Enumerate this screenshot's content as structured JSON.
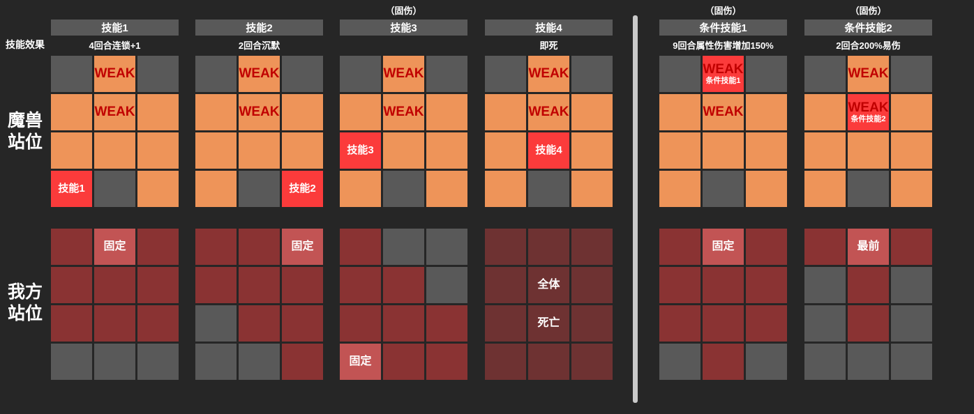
{
  "labels": {
    "skill_effect": "技能效果",
    "monster_position": "魔兽\n站位",
    "player_position": "我方\n站位"
  },
  "colors": {
    "background": "#262626",
    "header_bg": "#595959",
    "dark_cell": "#595959",
    "orange_cell": "#EE9459",
    "red_cell": "#FB3B3B",
    "player_red_cell": "#8A3333",
    "light_red_cell": "#C25454",
    "gray_cell": "#595959",
    "maroon_cell": "#6E3232",
    "weak_text": "#C00000",
    "white_text": "#FFFFFF",
    "divider": "#C9C9C9"
  },
  "skills": [
    {
      "id": "skill-1",
      "tag": "",
      "name": "技能1",
      "effect": "4回合连锁+1",
      "monster_grid": [
        [
          {
            "c": "d"
          },
          {
            "c": "o",
            "t": "WEAK"
          },
          {
            "c": "d"
          }
        ],
        [
          {
            "c": "o"
          },
          {
            "c": "o",
            "t": "WEAK"
          },
          {
            "c": "o"
          }
        ],
        [
          {
            "c": "o"
          },
          {
            "c": "o"
          },
          {
            "c": "o"
          }
        ],
        [
          {
            "c": "r",
            "t": "技能1"
          },
          {
            "c": "d"
          },
          {
            "c": "o"
          }
        ]
      ],
      "player_grid": [
        [
          {
            "c": "p"
          },
          {
            "c": "f",
            "t": "固定"
          },
          {
            "c": "p"
          }
        ],
        [
          {
            "c": "p"
          },
          {
            "c": "p"
          },
          {
            "c": "p"
          }
        ],
        [
          {
            "c": "p"
          },
          {
            "c": "p"
          },
          {
            "c": "p"
          }
        ],
        [
          {
            "c": "g"
          },
          {
            "c": "g"
          },
          {
            "c": "g"
          }
        ]
      ]
    },
    {
      "id": "skill-2",
      "tag": "",
      "name": "技能2",
      "effect": "2回合沉默",
      "monster_grid": [
        [
          {
            "c": "d"
          },
          {
            "c": "o",
            "t": "WEAK"
          },
          {
            "c": "d"
          }
        ],
        [
          {
            "c": "o"
          },
          {
            "c": "o",
            "t": "WEAK"
          },
          {
            "c": "o"
          }
        ],
        [
          {
            "c": "o"
          },
          {
            "c": "o"
          },
          {
            "c": "o"
          }
        ],
        [
          {
            "c": "o"
          },
          {
            "c": "d"
          },
          {
            "c": "r",
            "t": "技能2"
          }
        ]
      ],
      "player_grid": [
        [
          {
            "c": "p"
          },
          {
            "c": "p"
          },
          {
            "c": "f",
            "t": "固定"
          }
        ],
        [
          {
            "c": "p"
          },
          {
            "c": "p"
          },
          {
            "c": "p"
          }
        ],
        [
          {
            "c": "g"
          },
          {
            "c": "p"
          },
          {
            "c": "p"
          }
        ],
        [
          {
            "c": "g"
          },
          {
            "c": "g"
          },
          {
            "c": "p"
          }
        ]
      ]
    },
    {
      "id": "skill-3",
      "tag": "（固伤）",
      "name": "技能3",
      "effect": "",
      "monster_grid": [
        [
          {
            "c": "d"
          },
          {
            "c": "o",
            "t": "WEAK"
          },
          {
            "c": "d"
          }
        ],
        [
          {
            "c": "o"
          },
          {
            "c": "o",
            "t": "WEAK"
          },
          {
            "c": "o"
          }
        ],
        [
          {
            "c": "r",
            "t": "技能3"
          },
          {
            "c": "o"
          },
          {
            "c": "o"
          }
        ],
        [
          {
            "c": "o"
          },
          {
            "c": "d"
          },
          {
            "c": "o"
          }
        ]
      ],
      "player_grid": [
        [
          {
            "c": "p"
          },
          {
            "c": "g"
          },
          {
            "c": "g"
          }
        ],
        [
          {
            "c": "p"
          },
          {
            "c": "p"
          },
          {
            "c": "g"
          }
        ],
        [
          {
            "c": "p"
          },
          {
            "c": "p"
          },
          {
            "c": "p"
          }
        ],
        [
          {
            "c": "f",
            "t": "固定"
          },
          {
            "c": "p"
          },
          {
            "c": "p"
          }
        ]
      ]
    },
    {
      "id": "skill-4",
      "tag": "",
      "name": "技能4",
      "effect": "即死",
      "monster_grid": [
        [
          {
            "c": "d"
          },
          {
            "c": "o",
            "t": "WEAK"
          },
          {
            "c": "d"
          }
        ],
        [
          {
            "c": "o"
          },
          {
            "c": "o",
            "t": "WEAK"
          },
          {
            "c": "o"
          }
        ],
        [
          {
            "c": "o"
          },
          {
            "c": "r",
            "t": "技能4"
          },
          {
            "c": "o"
          }
        ],
        [
          {
            "c": "o"
          },
          {
            "c": "d"
          },
          {
            "c": "o"
          }
        ]
      ],
      "player_grid": [
        [
          {
            "c": "m"
          },
          {
            "c": "m"
          },
          {
            "c": "m"
          }
        ],
        [
          {
            "c": "m"
          },
          {
            "c": "m",
            "t": "全体"
          },
          {
            "c": "m"
          }
        ],
        [
          {
            "c": "m"
          },
          {
            "c": "m",
            "t": "死亡"
          },
          {
            "c": "m"
          }
        ],
        [
          {
            "c": "m"
          },
          {
            "c": "m"
          },
          {
            "c": "m"
          }
        ]
      ]
    },
    {
      "id": "cond-skill-1",
      "tag": "（固伤）",
      "name": "条件技能1",
      "effect": "9回合属性伤害增加150%",
      "monster_grid": [
        [
          {
            "c": "d"
          },
          {
            "c": "r",
            "t": "WEAK",
            "s": "条件技能1"
          },
          {
            "c": "d"
          }
        ],
        [
          {
            "c": "o"
          },
          {
            "c": "o",
            "t": "WEAK"
          },
          {
            "c": "o"
          }
        ],
        [
          {
            "c": "o"
          },
          {
            "c": "o"
          },
          {
            "c": "o"
          }
        ],
        [
          {
            "c": "o"
          },
          {
            "c": "d"
          },
          {
            "c": "o"
          }
        ]
      ],
      "player_grid": [
        [
          {
            "c": "p"
          },
          {
            "c": "f",
            "t": "固定"
          },
          {
            "c": "p"
          }
        ],
        [
          {
            "c": "p"
          },
          {
            "c": "p"
          },
          {
            "c": "p"
          }
        ],
        [
          {
            "c": "p"
          },
          {
            "c": "p"
          },
          {
            "c": "p"
          }
        ],
        [
          {
            "c": "g"
          },
          {
            "c": "p"
          },
          {
            "c": "g"
          }
        ]
      ]
    },
    {
      "id": "cond-skill-2",
      "tag": "（固伤）",
      "name": "条件技能2",
      "effect": "2回合200%易伤",
      "monster_grid": [
        [
          {
            "c": "d"
          },
          {
            "c": "o",
            "t": "WEAK"
          },
          {
            "c": "d"
          }
        ],
        [
          {
            "c": "o"
          },
          {
            "c": "r",
            "t": "WEAK",
            "s": "条件技能2"
          },
          {
            "c": "o"
          }
        ],
        [
          {
            "c": "o"
          },
          {
            "c": "o"
          },
          {
            "c": "o"
          }
        ],
        [
          {
            "c": "o"
          },
          {
            "c": "d"
          },
          {
            "c": "o"
          }
        ]
      ],
      "player_grid": [
        [
          {
            "c": "p"
          },
          {
            "c": "f",
            "t": "最前"
          },
          {
            "c": "p"
          }
        ],
        [
          {
            "c": "g"
          },
          {
            "c": "p"
          },
          {
            "c": "g"
          }
        ],
        [
          {
            "c": "g"
          },
          {
            "c": "p"
          },
          {
            "c": "g"
          }
        ],
        [
          {
            "c": "g"
          },
          {
            "c": "g"
          },
          {
            "c": "g"
          }
        ]
      ]
    }
  ]
}
